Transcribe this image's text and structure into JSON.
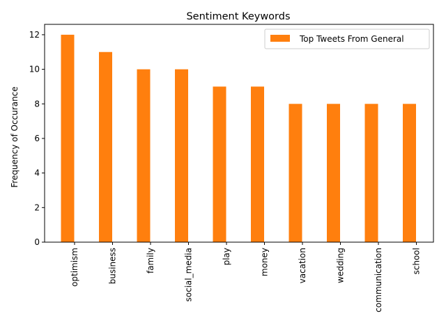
{
  "chart_data": {
    "type": "bar",
    "title": "Sentiment Keywords",
    "xlabel": "",
    "ylabel": "Frequency of Occurance",
    "categories": [
      "optimism",
      "business",
      "family",
      "social_media",
      "play",
      "money",
      "vacation",
      "wedding",
      "communication",
      "school"
    ],
    "series": [
      {
        "name": "Top Tweets From General",
        "color": "#ff7f0e",
        "values": [
          12,
          11,
          10,
          10,
          9,
          9,
          8,
          8,
          8,
          8
        ]
      }
    ],
    "yticks": [
      0,
      2,
      4,
      6,
      8,
      10,
      12
    ],
    "ylim": [
      0,
      12.6
    ],
    "grid": false,
    "legend": "top-right"
  }
}
